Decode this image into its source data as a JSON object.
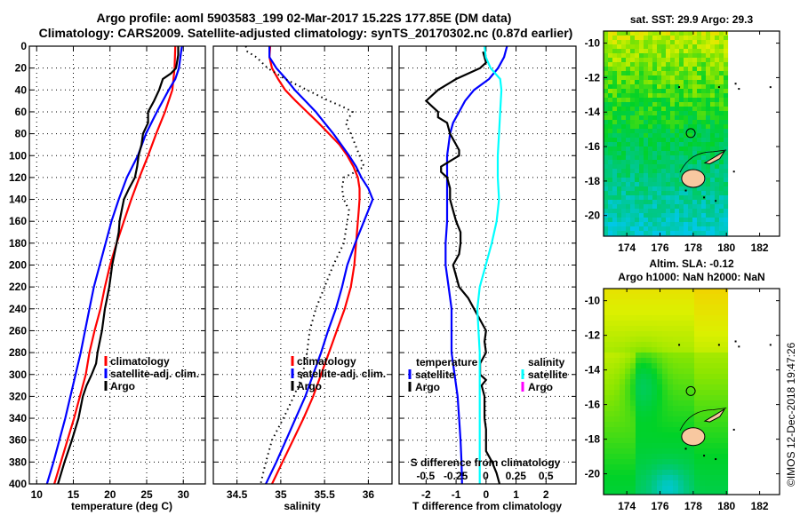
{
  "header": {
    "title_line1": "Argo profile: aoml 5903583_199 02-Mar-2017 15.22S 177.85E (DM data)",
    "title_line2": "Climatology: CARS2009. Satellite-adjusted climatology: synTS_20170302.nc (0.87d earlier)"
  },
  "colors": {
    "climatology": "#ff0000",
    "satellite": "#0000ff",
    "argo": "#000000",
    "salinity_satellite": "#00ffff",
    "salinity_argo": "#ff00ff",
    "land": "#f8c8a0"
  },
  "chart_data": [
    {
      "type": "line",
      "id": "temperature",
      "xlabel": "temperature (deg C)",
      "ylabel": "",
      "xlim": [
        9,
        33
      ],
      "ylim": [
        400,
        0
      ],
      "xticks": [
        10,
        15,
        20,
        25,
        30
      ],
      "yticks": [
        0,
        20,
        40,
        60,
        80,
        100,
        120,
        140,
        160,
        180,
        200,
        220,
        240,
        260,
        280,
        300,
        320,
        340,
        360,
        380,
        400
      ],
      "grid": true,
      "legend_position": "center-right",
      "legend": [
        "climatology",
        "satellite-adj. clim.",
        "Argo"
      ],
      "series": [
        {
          "name": "climatology",
          "color": "#ff0000",
          "depth": [
            0,
            20,
            40,
            60,
            80,
            100,
            120,
            140,
            160,
            180,
            200,
            220,
            240,
            260,
            280,
            300,
            320,
            340,
            360,
            380,
            400
          ],
          "values": [
            28.9,
            28.8,
            28.5,
            27.5,
            26.3,
            25.2,
            24.0,
            22.9,
            21.9,
            20.9,
            20.0,
            19.3,
            18.7,
            17.9,
            17.2,
            16.7,
            15.9,
            15.1,
            14.2,
            13.3,
            12.4
          ]
        },
        {
          "name": "satellite-adj. clim.",
          "color": "#0000ff",
          "depth": [
            0,
            20,
            30,
            40,
            60,
            80,
            100,
            120,
            140,
            160,
            180,
            200,
            220,
            240,
            260,
            280,
            300,
            320,
            340,
            360,
            380,
            400
          ],
          "values": [
            29.8,
            29.4,
            28.9,
            28.0,
            26.4,
            24.9,
            23.8,
            22.3,
            21.2,
            20.2,
            19.4,
            18.6,
            17.8,
            17.2,
            16.6,
            16.0,
            15.3,
            14.6,
            13.9,
            13.1,
            12.3,
            11.4
          ]
        },
        {
          "name": "Argo",
          "color": "#000000",
          "depth": [
            0,
            8,
            20,
            25,
            30,
            40,
            50,
            60,
            70,
            80,
            90,
            100,
            110,
            120,
            130,
            140,
            150,
            160,
            170,
            180,
            190,
            200,
            210,
            220,
            230,
            240,
            260,
            280,
            290,
            300,
            310,
            320,
            340,
            360,
            380,
            400
          ],
          "values": [
            29.3,
            29.3,
            29.0,
            28.3,
            27.2,
            26.7,
            26.0,
            25.2,
            25.2,
            24.5,
            24.3,
            23.9,
            23.7,
            23.4,
            22.6,
            21.9,
            21.6,
            21.3,
            21.2,
            20.9,
            20.6,
            20.3,
            20.1,
            19.9,
            19.6,
            19.3,
            18.9,
            18.3,
            18.1,
            17.5,
            16.8,
            16.3,
            15.7,
            14.8,
            13.8,
            12.9
          ]
        }
      ]
    },
    {
      "type": "line",
      "id": "salinity",
      "xlabel": "salinity",
      "xlim": [
        34.23,
        36.27
      ],
      "ylim": [
        400,
        0
      ],
      "xticks": [
        34.5,
        35,
        35.5,
        36
      ],
      "grid": true,
      "legend_position": "center-right",
      "legend": [
        "climatology",
        "satellite-adj. clim.",
        "Argo"
      ],
      "series": [
        {
          "name": "climatology",
          "color": "#ff0000",
          "depth": [
            0,
            10,
            20,
            30,
            40,
            50,
            60,
            70,
            80,
            90,
            100,
            110,
            120,
            130,
            140,
            150,
            160,
            180,
            200,
            220,
            240,
            260,
            280,
            300,
            320,
            340,
            360,
            380,
            400
          ],
          "values": [
            34.88,
            34.87,
            34.9,
            34.97,
            35.05,
            35.17,
            35.3,
            35.43,
            35.55,
            35.67,
            35.76,
            35.83,
            35.88,
            35.9,
            35.9,
            35.89,
            35.88,
            35.86,
            35.84,
            35.8,
            35.73,
            35.64,
            35.55,
            35.46,
            35.37,
            35.26,
            35.14,
            35.02,
            34.9
          ]
        },
        {
          "name": "satellite-adj. clim.",
          "color": "#0000ff",
          "depth": [
            0,
            10,
            20,
            30,
            40,
            50,
            60,
            70,
            80,
            90,
            100,
            110,
            120,
            130,
            140,
            150,
            160,
            180,
            200,
            220,
            240,
            260,
            280,
            300,
            320,
            340,
            360,
            380,
            400
          ],
          "values": [
            34.87,
            34.87,
            34.95,
            35.06,
            35.16,
            35.28,
            35.4,
            35.5,
            35.6,
            35.69,
            35.78,
            35.86,
            35.92,
            36.0,
            36.05,
            36.0,
            35.95,
            35.85,
            35.76,
            35.7,
            35.63,
            35.54,
            35.46,
            35.37,
            35.28,
            35.17,
            35.06,
            34.95,
            34.83
          ]
        },
        {
          "name": "Argo",
          "color": "#000000",
          "style": "dotted",
          "depth": [
            0,
            5,
            10,
            20,
            30,
            40,
            50,
            55,
            60,
            70,
            80,
            90,
            100,
            110,
            115,
            120,
            130,
            140,
            150,
            160,
            180,
            200,
            220,
            240,
            260,
            280,
            300,
            320,
            340,
            360,
            380,
            400
          ],
          "values": [
            34.6,
            34.62,
            34.72,
            34.85,
            35.05,
            35.3,
            35.55,
            35.7,
            35.82,
            35.74,
            35.8,
            35.85,
            35.9,
            35.95,
            35.85,
            35.72,
            35.7,
            35.72,
            35.78,
            35.76,
            35.72,
            35.6,
            35.5,
            35.4,
            35.33,
            35.3,
            35.25,
            35.15,
            35.03,
            34.9,
            34.83,
            34.77
          ]
        }
      ]
    },
    {
      "type": "line",
      "id": "difference",
      "xlabel": "T difference from climatology",
      "x2label": "S difference from climatology",
      "xlim": [
        -2.9,
        3.0
      ],
      "x2lim": [
        -0.72,
        0.75
      ],
      "ylim": [
        400,
        0
      ],
      "xticks": [
        -2,
        -1,
        0,
        1,
        2
      ],
      "x2ticks": [
        -0.5,
        -0.25,
        0,
        0.25,
        0.5
      ],
      "right_axis_ticks": [
        -10,
        -12,
        -14,
        -16,
        -18,
        -20
      ],
      "grid": true,
      "legend_temperature": {
        "title": "temperature",
        "items": [
          "satellite",
          "Argo"
        ]
      },
      "legend_salinity": {
        "title": "salinity",
        "items": [
          "satellite",
          "Argo"
        ]
      },
      "series": [
        {
          "name": "temperature satellite",
          "color": "#0000ff",
          "axis": "T",
          "depth": [
            0,
            10,
            20,
            30,
            40,
            50,
            60,
            70,
            80,
            90,
            100,
            120,
            140,
            160,
            180,
            200,
            220,
            240,
            260,
            280,
            300,
            320,
            340,
            360,
            380,
            400
          ],
          "values": [
            0.7,
            0.6,
            0.4,
            0.1,
            -0.4,
            -0.7,
            -0.9,
            -1.1,
            -1.2,
            -1.25,
            -1.3,
            -1.3,
            -1.3,
            -1.3,
            -1.35,
            -1.35,
            -1.25,
            -1.15,
            -1.15,
            -1.15,
            -1.05,
            -0.95,
            -0.9,
            -0.85,
            -0.82,
            -0.8
          ]
        },
        {
          "name": "temperature Argo",
          "color": "#000000",
          "axis": "T",
          "depth": [
            5,
            15,
            20,
            30,
            40,
            50,
            55,
            60,
            65,
            70,
            80,
            90,
            95,
            100,
            105,
            110,
            115,
            120,
            130,
            140,
            150,
            160,
            170,
            180,
            190,
            200,
            210,
            220,
            230,
            240,
            250,
            260,
            270,
            280,
            290,
            300,
            305,
            310,
            320,
            340,
            350,
            360,
            370,
            380,
            390,
            400
          ],
          "values": [
            -0.1,
            0.0,
            -0.2,
            -1.0,
            -1.6,
            -2.0,
            -1.8,
            -1.6,
            -1.6,
            -1.3,
            -1.2,
            -1.0,
            -0.9,
            -0.9,
            -1.2,
            -1.5,
            -1.5,
            -1.3,
            -1.2,
            -1.2,
            -1.1,
            -1.0,
            -0.85,
            -0.85,
            -0.9,
            -1.1,
            -1.0,
            -0.9,
            -0.6,
            -0.4,
            -0.2,
            0.0,
            -0.05,
            0.0,
            -0.2,
            -0.2,
            0.0,
            -0.15,
            -0.05,
            -0.05,
            0.0,
            0.0,
            0.0,
            0.2,
            0.35,
            0.45
          ]
        },
        {
          "name": "salinity satellite",
          "color": "#00ffff",
          "axis": "S",
          "depth": [
            0,
            10,
            20,
            30,
            40,
            60,
            80,
            100,
            120,
            140,
            160,
            180,
            200,
            220,
            240,
            260,
            280,
            300,
            320,
            340,
            360,
            380,
            400
          ],
          "values": [
            -0.01,
            0.0,
            0.04,
            0.12,
            0.13,
            0.12,
            0.11,
            0.1,
            0.1,
            0.11,
            0.09,
            0.05,
            0.0,
            -0.05,
            -0.07,
            -0.06,
            -0.05,
            -0.05,
            -0.05,
            -0.05,
            -0.05,
            -0.05,
            -0.05
          ]
        },
        {
          "name": "salinity Argo",
          "color": "#ff00ff",
          "axis": "S",
          "depth": [],
          "values": []
        }
      ]
    },
    {
      "type": "heatmap",
      "id": "sst-map",
      "title": "sat. SST: 29.9 Argo: 29.3",
      "xlim": [
        172.6,
        183.2
      ],
      "ylim": [
        -21.2,
        -9.3
      ],
      "xticks": [
        174,
        176,
        178,
        180,
        182
      ],
      "yticks": [
        -10,
        -12,
        -14,
        -16,
        -18,
        -20
      ],
      "argo_position": {
        "lon": 177.85,
        "lat": -15.22
      },
      "data_max_lon": 180.1
    },
    {
      "type": "heatmap",
      "id": "sla-map",
      "title": "Altim. SLA: -0.12",
      "subtitle": "Argo h1000: NaN h2000: NaN",
      "xlim": [
        172.6,
        183.2
      ],
      "ylim": [
        -21.2,
        -9.3
      ],
      "xticks": [
        174,
        176,
        178,
        180,
        182
      ],
      "yticks": [
        -10,
        -12,
        -14,
        -16,
        -18,
        -20
      ],
      "argo_position": {
        "lon": 177.85,
        "lat": -15.22
      },
      "data_max_lon": 180.1
    }
  ],
  "legend_labels": {
    "climatology": "climatology",
    "satellite_adj": "satellite-adj. clim.",
    "argo": "Argo",
    "temperature": "temperature",
    "salinity": "salinity",
    "satellite": "satellite"
  },
  "footer_stamp": "©IMOS 12-Dec-2018 19:47:26"
}
